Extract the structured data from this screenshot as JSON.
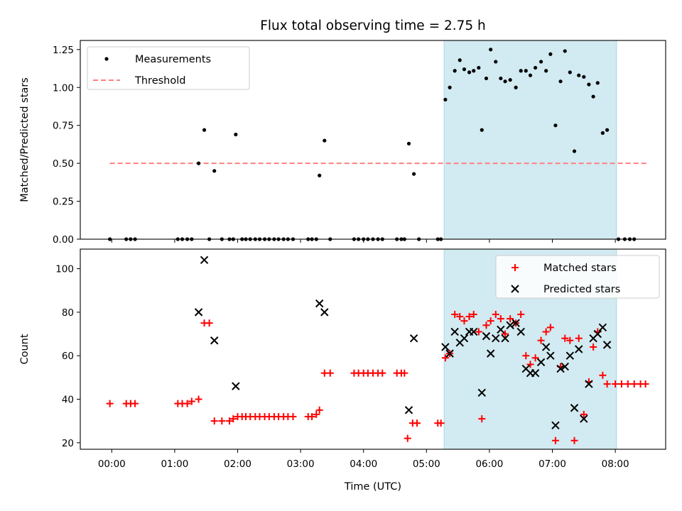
{
  "chart_data": {
    "type": "scatter",
    "title": "Flux total observing time = 2.75 h",
    "xlabel": "Time (UTC)",
    "x_tick_labels": [
      "00:00",
      "01:00",
      "02:00",
      "03:00",
      "04:00",
      "05:00",
      "06:00",
      "07:00",
      "08:00"
    ],
    "xlim_hours": [
      -0.5,
      8.8
    ],
    "shaded_interval_hours": [
      5.28,
      8.02
    ],
    "shade_color": "#add8e6",
    "panels": [
      {
        "id": "ratio",
        "ylabel": "Matched/Predicted stars",
        "ylim": [
          0,
          1.31
        ],
        "y_ticks": [
          0.0,
          0.25,
          0.5,
          0.75,
          1.0,
          1.25
        ],
        "y_tick_labels": [
          "0.00",
          "0.25",
          "0.50",
          "0.75",
          "1.00",
          "1.25"
        ],
        "legend": [
          {
            "label": "Measurements",
            "marker": "dot",
            "color": "#000000"
          },
          {
            "label": "Threshold",
            "marker": "dashed-line",
            "color": "#ff8080"
          }
        ],
        "threshold": {
          "y": 0.5,
          "x_range_hours": [
            -0.03,
            8.5
          ]
        },
        "series": [
          {
            "name": "Measurements",
            "points": [
              [
                -0.03,
                0
              ],
              [
                0.23,
                0
              ],
              [
                0.3,
                0
              ],
              [
                0.37,
                0
              ],
              [
                1.05,
                0
              ],
              [
                1.12,
                0
              ],
              [
                1.2,
                0
              ],
              [
                1.27,
                0
              ],
              [
                1.38,
                0.5
              ],
              [
                1.47,
                0.72
              ],
              [
                1.55,
                0
              ],
              [
                1.63,
                0.45
              ],
              [
                1.75,
                0
              ],
              [
                1.87,
                0
              ],
              [
                1.93,
                0
              ],
              [
                1.97,
                0.69
              ],
              [
                2.07,
                0
              ],
              [
                2.13,
                0
              ],
              [
                2.2,
                0
              ],
              [
                2.28,
                0
              ],
              [
                2.35,
                0
              ],
              [
                2.43,
                0
              ],
              [
                2.5,
                0
              ],
              [
                2.58,
                0
              ],
              [
                2.65,
                0
              ],
              [
                2.73,
                0
              ],
              [
                2.8,
                0
              ],
              [
                2.88,
                0
              ],
              [
                3.12,
                0
              ],
              [
                3.18,
                0
              ],
              [
                3.25,
                0
              ],
              [
                3.3,
                0.42
              ],
              [
                3.38,
                0.65
              ],
              [
                3.47,
                0
              ],
              [
                3.85,
                0
              ],
              [
                3.92,
                0
              ],
              [
                4.0,
                0
              ],
              [
                4.07,
                0
              ],
              [
                4.15,
                0
              ],
              [
                4.23,
                0
              ],
              [
                4.3,
                0
              ],
              [
                4.53,
                0
              ],
              [
                4.6,
                0
              ],
              [
                4.65,
                0
              ],
              [
                4.72,
                0.63
              ],
              [
                4.8,
                0.43
              ],
              [
                4.88,
                0
              ],
              [
                5.18,
                0
              ],
              [
                5.23,
                0
              ],
              [
                5.3,
                0.92
              ],
              [
                5.37,
                1.0
              ],
              [
                5.45,
                1.11
              ],
              [
                5.53,
                1.18
              ],
              [
                5.6,
                1.12
              ],
              [
                5.68,
                1.1
              ],
              [
                5.75,
                1.11
              ],
              [
                5.83,
                1.13
              ],
              [
                5.88,
                0.72
              ],
              [
                5.95,
                1.06
              ],
              [
                6.02,
                1.25
              ],
              [
                6.1,
                1.17
              ],
              [
                6.18,
                1.06
              ],
              [
                6.25,
                1.04
              ],
              [
                6.33,
                1.05
              ],
              [
                6.42,
                1.0
              ],
              [
                6.5,
                1.11
              ],
              [
                6.58,
                1.11
              ],
              [
                6.65,
                1.08
              ],
              [
                6.73,
                1.13
              ],
              [
                6.82,
                1.17
              ],
              [
                6.9,
                1.11
              ],
              [
                6.97,
                1.22
              ],
              [
                7.05,
                0.75
              ],
              [
                7.13,
                1.04
              ],
              [
                7.2,
                1.24
              ],
              [
                7.28,
                1.1
              ],
              [
                7.35,
                0.58
              ],
              [
                7.42,
                1.08
              ],
              [
                7.5,
                1.07
              ],
              [
                7.58,
                1.02
              ],
              [
                7.65,
                0.94
              ],
              [
                7.72,
                1.03
              ],
              [
                7.8,
                0.7
              ],
              [
                7.87,
                0.72
              ],
              [
                8.05,
                0
              ],
              [
                8.15,
                0
              ],
              [
                8.23,
                0
              ],
              [
                8.3,
                0
              ]
            ]
          }
        ]
      },
      {
        "id": "count",
        "ylabel": "Count",
        "ylim": [
          17,
          109
        ],
        "y_ticks": [
          20,
          40,
          60,
          80,
          100
        ],
        "y_tick_labels": [
          "20",
          "40",
          "60",
          "80",
          "100"
        ],
        "legend": [
          {
            "label": "Matched stars",
            "marker": "plus",
            "color": "#ff0000"
          },
          {
            "label": "Predicted stars",
            "marker": "x",
            "color": "#000000"
          }
        ],
        "series": [
          {
            "name": "Matched stars",
            "marker": "plus",
            "points": [
              [
                -0.03,
                38
              ],
              [
                0.23,
                38
              ],
              [
                0.3,
                38
              ],
              [
                0.37,
                38
              ],
              [
                1.05,
                38
              ],
              [
                1.12,
                38
              ],
              [
                1.2,
                38
              ],
              [
                1.27,
                39
              ],
              [
                1.38,
                40
              ],
              [
                1.47,
                75
              ],
              [
                1.55,
                75
              ],
              [
                1.63,
                30
              ],
              [
                1.75,
                30
              ],
              [
                1.87,
                30
              ],
              [
                1.93,
                31
              ],
              [
                2.0,
                32
              ],
              [
                2.07,
                32
              ],
              [
                2.13,
                32
              ],
              [
                2.2,
                32
              ],
              [
                2.28,
                32
              ],
              [
                2.35,
                32
              ],
              [
                2.43,
                32
              ],
              [
                2.5,
                32
              ],
              [
                2.58,
                32
              ],
              [
                2.65,
                32
              ],
              [
                2.73,
                32
              ],
              [
                2.8,
                32
              ],
              [
                2.88,
                32
              ],
              [
                3.12,
                32
              ],
              [
                3.18,
                32
              ],
              [
                3.25,
                33
              ],
              [
                3.3,
                35
              ],
              [
                3.38,
                52
              ],
              [
                3.47,
                52
              ],
              [
                3.85,
                52
              ],
              [
                3.92,
                52
              ],
              [
                4.0,
                52
              ],
              [
                4.07,
                52
              ],
              [
                4.15,
                52
              ],
              [
                4.23,
                52
              ],
              [
                4.3,
                52
              ],
              [
                4.53,
                52
              ],
              [
                4.6,
                52
              ],
              [
                4.65,
                52
              ],
              [
                4.7,
                22
              ],
              [
                4.78,
                29
              ],
              [
                4.85,
                29
              ],
              [
                5.18,
                29
              ],
              [
                5.23,
                29
              ],
              [
                5.3,
                59
              ],
              [
                5.37,
                61
              ],
              [
                5.45,
                79
              ],
              [
                5.53,
                78
              ],
              [
                5.6,
                76
              ],
              [
                5.68,
                78
              ],
              [
                5.75,
                79
              ],
              [
                5.83,
                71
              ],
              [
                5.88,
                31
              ],
              [
                5.95,
                74
              ],
              [
                6.02,
                76
              ],
              [
                6.1,
                79
              ],
              [
                6.18,
                77
              ],
              [
                6.25,
                70
              ],
              [
                6.33,
                77
              ],
              [
                6.42,
                75
              ],
              [
                6.5,
                79
              ],
              [
                6.58,
                60
              ],
              [
                6.65,
                56
              ],
              [
                6.73,
                59
              ],
              [
                6.82,
                67
              ],
              [
                6.9,
                71
              ],
              [
                6.97,
                73
              ],
              [
                7.05,
                21
              ],
              [
                7.13,
                55
              ],
              [
                7.2,
                68
              ],
              [
                7.28,
                67
              ],
              [
                7.35,
                21
              ],
              [
                7.42,
                68
              ],
              [
                7.5,
                33
              ],
              [
                7.58,
                48
              ],
              [
                7.65,
                64
              ],
              [
                7.72,
                71
              ],
              [
                7.8,
                51
              ],
              [
                7.87,
                47
              ],
              [
                8.0,
                47
              ],
              [
                8.1,
                47
              ],
              [
                8.2,
                47
              ],
              [
                8.3,
                47
              ],
              [
                8.4,
                47
              ],
              [
                8.48,
                47
              ]
            ]
          },
          {
            "name": "Predicted stars",
            "marker": "x",
            "points": [
              [
                1.38,
                80
              ],
              [
                1.47,
                104
              ],
              [
                1.63,
                67
              ],
              [
                1.97,
                46
              ],
              [
                3.3,
                84
              ],
              [
                3.38,
                80
              ],
              [
                4.72,
                35
              ],
              [
                4.8,
                68
              ],
              [
                5.3,
                64
              ],
              [
                5.37,
                61
              ],
              [
                5.45,
                71
              ],
              [
                5.53,
                66
              ],
              [
                5.6,
                68
              ],
              [
                5.68,
                71
              ],
              [
                5.75,
                71
              ],
              [
                5.88,
                43
              ],
              [
                5.95,
                69
              ],
              [
                6.02,
                61
              ],
              [
                6.1,
                68
              ],
              [
                6.18,
                72
              ],
              [
                6.25,
                68
              ],
              [
                6.33,
                74
              ],
              [
                6.42,
                75
              ],
              [
                6.5,
                71
              ],
              [
                6.58,
                54
              ],
              [
                6.65,
                52
              ],
              [
                6.73,
                52
              ],
              [
                6.82,
                57
              ],
              [
                6.9,
                64
              ],
              [
                6.97,
                60
              ],
              [
                7.05,
                28
              ],
              [
                7.13,
                54
              ],
              [
                7.2,
                55
              ],
              [
                7.28,
                60
              ],
              [
                7.35,
                36
              ],
              [
                7.42,
                63
              ],
              [
                7.5,
                31
              ],
              [
                7.58,
                47
              ],
              [
                7.65,
                68
              ],
              [
                7.72,
                70
              ],
              [
                7.8,
                73
              ],
              [
                7.87,
                65
              ]
            ]
          }
        ]
      }
    ]
  }
}
